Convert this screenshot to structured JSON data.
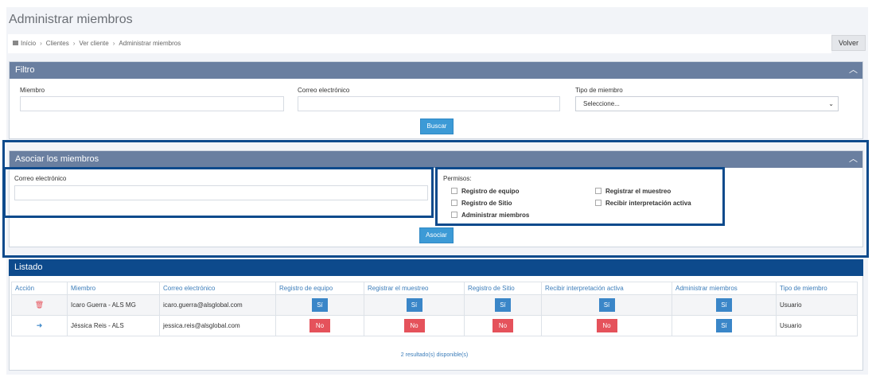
{
  "title": "Administrar miembros",
  "breadcrumb": [
    "Início",
    "Clientes",
    "Ver cliente",
    "Administrar miembros"
  ],
  "back_label": "Volver",
  "filtro": {
    "title": "Filtro",
    "member_label": "Miembro",
    "email_label": "Correo electrónico",
    "type_label": "Tipo de miembro",
    "type_value": "Seleccione...",
    "search_btn": "Buscar"
  },
  "asociar": {
    "title": "Asociar los miembros",
    "email_label": "Correo electrónico",
    "permisos_label": "Permisos:",
    "perms": [
      "Registro de equipo",
      "Registro de Sitio",
      "Administrar miembros",
      "Registrar el muestreo",
      "Recibir interpretación activa"
    ],
    "btn": "Asociar"
  },
  "listado": {
    "title": "Listado",
    "columns": [
      "Acción",
      "Miembro",
      "Correo electrónico",
      "Registro de equipo",
      "Registrar el muestreo",
      "Registro de Sitio",
      "Recibir interpretación activa",
      "Administrar miembros",
      "Tipo de miembro"
    ],
    "rows": [
      {
        "member": "Icaro Guerra - ALS MG",
        "email": "icaro.guerra@alsglobal.com",
        "v": [
          "Sí",
          "Sí",
          "Sí",
          "Sí",
          "Sí"
        ],
        "type": "Usuario"
      },
      {
        "member": "Jéssica Reis - ALS",
        "email": "jessica.reis@alsglobal.com",
        "v": [
          "No",
          "No",
          "No",
          "No",
          "Sí"
        ],
        "type": "Usuario"
      }
    ],
    "footer": "2 resultado(s) disponible(s)"
  },
  "colors": {
    "header": "#6a7fa0",
    "accent": "#0d4a8c",
    "yes": "#3a86c8",
    "no": "#e5525b"
  }
}
